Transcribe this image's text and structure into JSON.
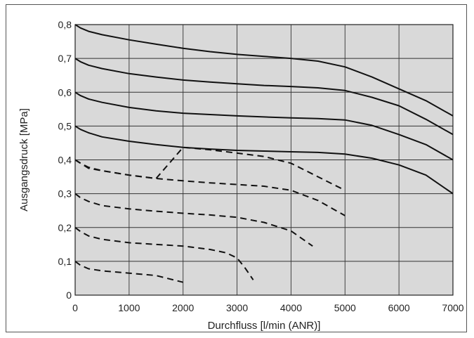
{
  "chart_data": {
    "type": "line",
    "xlabel": "Durchfluss [l/min (ANR)]",
    "ylabel": "Ausgangsdruck [MPa]",
    "xlim": [
      0,
      7000
    ],
    "ylim": [
      0,
      0.8
    ],
    "x_ticks": [
      0,
      1000,
      2000,
      3000,
      4000,
      5000,
      6000,
      7000
    ],
    "x_tick_labels": [
      "0",
      "1000",
      "2000",
      "3000",
      "4000",
      "5000",
      "6000",
      "7000"
    ],
    "y_ticks": [
      0,
      0.1,
      0.2,
      0.3,
      0.4,
      0.5,
      0.6,
      0.7,
      0.8
    ],
    "y_tick_labels": [
      "0",
      "0,1",
      "0,2",
      "0,3",
      "0,4",
      "0,5",
      "0,6",
      "0,7",
      "0,8"
    ],
    "grid": true,
    "plot_background": "#d9d9d9",
    "series": [
      {
        "style": "solid",
        "x": [
          0,
          100,
          250,
          500,
          1000,
          1500,
          2000,
          2500,
          3000,
          3500,
          4000,
          4500,
          5000,
          5500,
          6000,
          6500,
          7000
        ],
        "y": [
          0.8,
          0.79,
          0.78,
          0.77,
          0.755,
          0.742,
          0.73,
          0.72,
          0.712,
          0.706,
          0.7,
          0.692,
          0.675,
          0.645,
          0.61,
          0.575,
          0.53
        ]
      },
      {
        "style": "solid",
        "x": [
          0,
          100,
          250,
          500,
          1000,
          1500,
          2000,
          2500,
          3000,
          3500,
          4000,
          4500,
          5000,
          5500,
          6000,
          6500,
          7000
        ],
        "y": [
          0.7,
          0.69,
          0.68,
          0.67,
          0.655,
          0.645,
          0.636,
          0.63,
          0.625,
          0.62,
          0.617,
          0.613,
          0.605,
          0.585,
          0.56,
          0.52,
          0.475
        ]
      },
      {
        "style": "solid",
        "x": [
          0,
          100,
          250,
          500,
          1000,
          1500,
          2000,
          2500,
          3000,
          3500,
          4000,
          4500,
          5000,
          5500,
          6000,
          6500,
          7000
        ],
        "y": [
          0.6,
          0.59,
          0.58,
          0.57,
          0.555,
          0.545,
          0.538,
          0.534,
          0.53,
          0.527,
          0.524,
          0.522,
          0.518,
          0.502,
          0.475,
          0.445,
          0.4
        ]
      },
      {
        "style": "solid",
        "x": [
          0,
          100,
          250,
          500,
          1000,
          1500,
          2000,
          2500,
          3000,
          3500,
          4000,
          4500,
          5000,
          5500,
          6000,
          6500,
          7000
        ],
        "y": [
          0.5,
          0.49,
          0.48,
          0.468,
          0.455,
          0.445,
          0.437,
          0.432,
          0.428,
          0.426,
          0.424,
          0.422,
          0.417,
          0.405,
          0.385,
          0.355,
          0.3
        ]
      },
      {
        "style": "dashed",
        "x": [
          0,
          100,
          250,
          500,
          1000,
          1500,
          2000,
          2500,
          3000,
          3500,
          4000,
          4500,
          5000
        ],
        "y": [
          0.4,
          0.39,
          0.375,
          0.368,
          0.355,
          0.345,
          0.437,
          0.43,
          0.42,
          0.41,
          0.39,
          0.35,
          0.31
        ]
      },
      {
        "style": "dashed",
        "x": [
          0,
          100,
          250,
          500,
          1000,
          1500,
          2000,
          2500,
          3000,
          3500,
          4000,
          4500,
          5000
        ],
        "y": [
          0.4,
          0.39,
          0.378,
          0.368,
          0.355,
          0.345,
          0.338,
          0.332,
          0.327,
          0.322,
          0.31,
          0.28,
          0.235
        ]
      },
      {
        "style": "dashed",
        "x": [
          0,
          100,
          250,
          500,
          1000,
          1500,
          2000,
          2500,
          3000,
          3500,
          4000,
          4400
        ],
        "y": [
          0.3,
          0.288,
          0.277,
          0.265,
          0.255,
          0.248,
          0.242,
          0.237,
          0.23,
          0.215,
          0.19,
          0.145
        ]
      },
      {
        "style": "dashed",
        "x": [
          0,
          100,
          250,
          500,
          1000,
          1500,
          2000,
          2500,
          2800,
          3000,
          3150,
          3300
        ],
        "y": [
          0.2,
          0.188,
          0.175,
          0.165,
          0.155,
          0.15,
          0.145,
          0.135,
          0.125,
          0.11,
          0.08,
          0.045
        ]
      },
      {
        "style": "dashed",
        "x": [
          0,
          100,
          250,
          500,
          1000,
          1500,
          2000
        ],
        "y": [
          0.1,
          0.088,
          0.078,
          0.072,
          0.065,
          0.058,
          0.038
        ]
      }
    ]
  }
}
